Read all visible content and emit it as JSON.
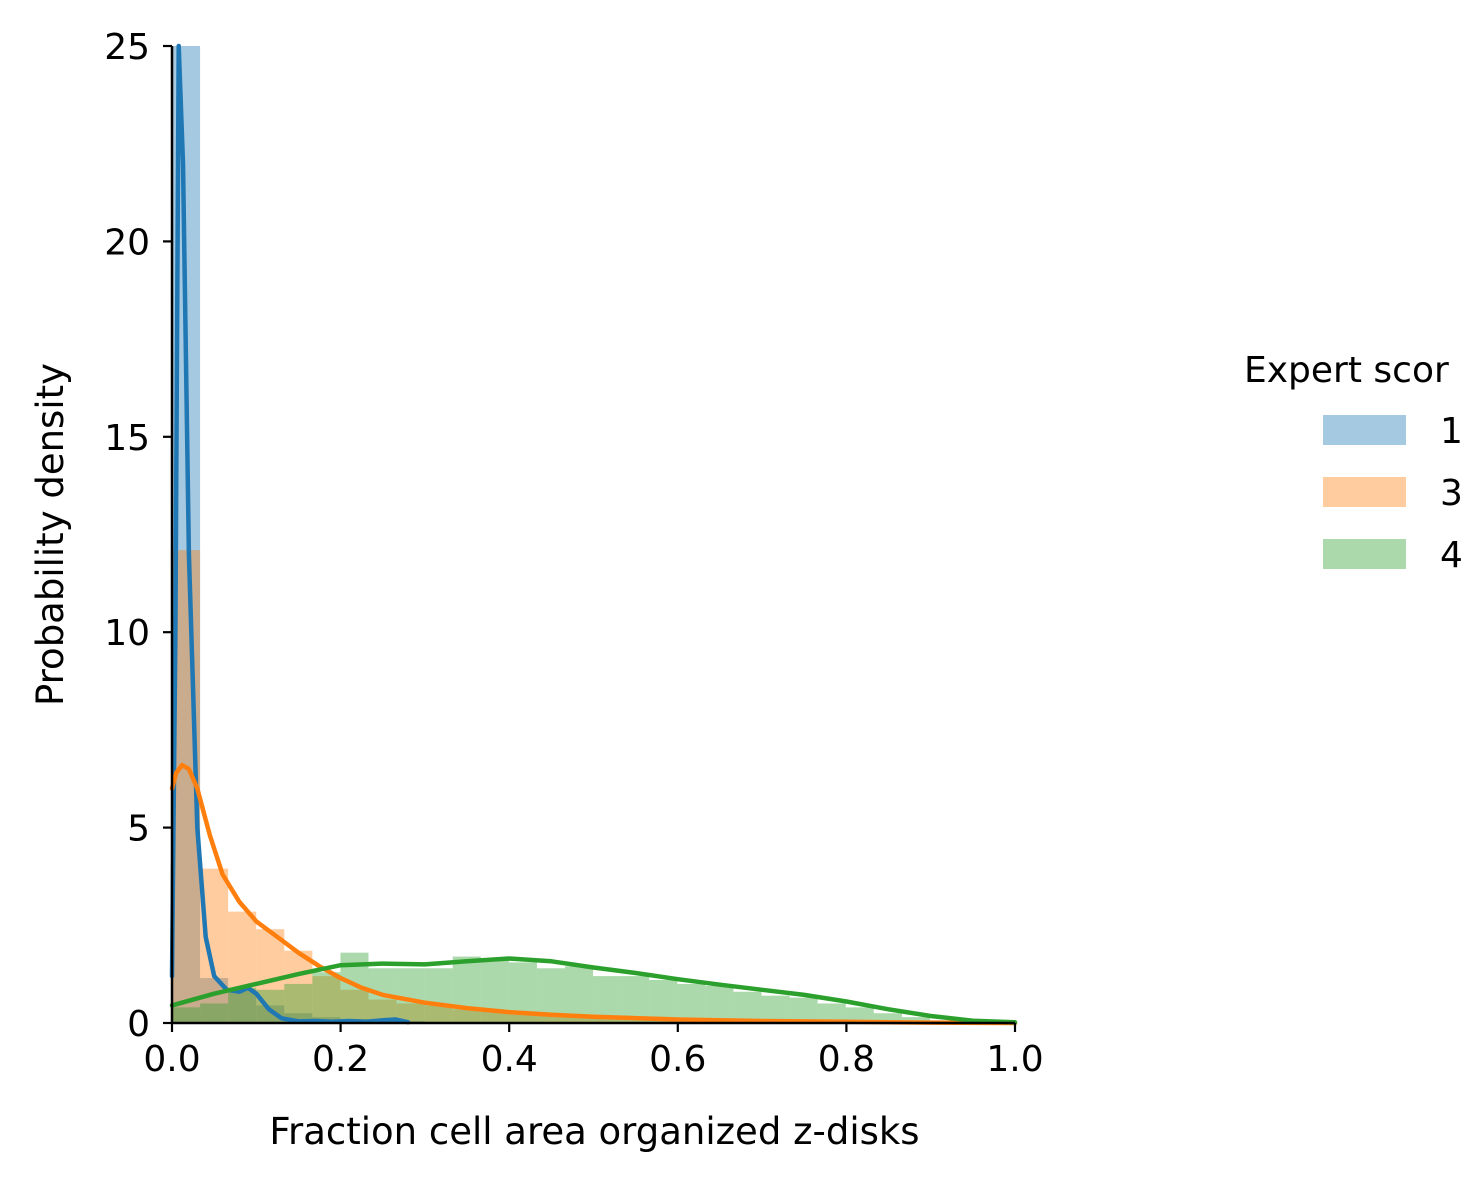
{
  "chart_data": {
    "type": "histogram_with_kde",
    "xlabel": "Fraction cell area organized z-disks",
    "ylabel": "Probability density",
    "xlim": [
      0.0,
      1.0
    ],
    "ylim": [
      0,
      25
    ],
    "x_ticks": [
      0.0,
      0.2,
      0.4,
      0.6,
      0.8,
      1.0
    ],
    "x_tick_labels": [
      "0.0",
      "0.2",
      "0.4",
      "0.6",
      "0.8",
      "1.0"
    ],
    "y_ticks": [
      0,
      5,
      10,
      15,
      20,
      25
    ],
    "y_tick_labels": [
      "0",
      "5",
      "10",
      "15",
      "20",
      "25"
    ],
    "grid": false,
    "legend": {
      "title": "Expert scor",
      "placement": "right, outside plot (cropped at image edge)"
    },
    "bin_width": 0.0333,
    "bins_start": 0.0,
    "series": [
      {
        "name": "1",
        "legend_label": "1",
        "color": "#1f77b4",
        "hist_alpha": 0.4,
        "hist_values": [
          25.0,
          1.15,
          0.85,
          0.45,
          0.25,
          0.15,
          0.1,
          0.05,
          0.05
        ],
        "kde": [
          [
            0.0,
            1.2
          ],
          [
            0.004,
            10.0
          ],
          [
            0.008,
            25.0
          ],
          [
            0.013,
            22.0
          ],
          [
            0.02,
            12.0
          ],
          [
            0.03,
            5.0
          ],
          [
            0.04,
            2.2
          ],
          [
            0.05,
            1.2
          ],
          [
            0.065,
            0.85
          ],
          [
            0.08,
            0.8
          ],
          [
            0.09,
            0.9
          ],
          [
            0.1,
            0.75
          ],
          [
            0.115,
            0.35
          ],
          [
            0.13,
            0.12
          ],
          [
            0.15,
            0.04
          ],
          [
            0.17,
            0.05
          ],
          [
            0.19,
            0.03
          ],
          [
            0.21,
            0.05
          ],
          [
            0.23,
            0.03
          ],
          [
            0.25,
            0.07
          ],
          [
            0.265,
            0.09
          ],
          [
            0.28,
            0.02
          ]
        ]
      },
      {
        "name": "3",
        "legend_label": "3",
        "color": "#ff7f0e",
        "hist_alpha": 0.4,
        "hist_values": [
          12.1,
          3.95,
          2.85,
          2.4,
          1.85,
          1.2,
          0.85,
          0.6,
          0.5,
          0.45,
          0.35,
          0.3,
          0.25,
          0.2,
          0.15,
          0.15,
          0.12,
          0.1,
          0.1,
          0.08,
          0.08,
          0.06,
          0.05,
          0.05,
          0.04,
          0.04,
          0.03,
          0.02
        ],
        "kde": [
          [
            0.0,
            6.0
          ],
          [
            0.005,
            6.4
          ],
          [
            0.012,
            6.6
          ],
          [
            0.02,
            6.5
          ],
          [
            0.03,
            6.0
          ],
          [
            0.045,
            4.8
          ],
          [
            0.06,
            3.8
          ],
          [
            0.08,
            3.1
          ],
          [
            0.1,
            2.6
          ],
          [
            0.125,
            2.2
          ],
          [
            0.15,
            1.8
          ],
          [
            0.175,
            1.45
          ],
          [
            0.2,
            1.15
          ],
          [
            0.225,
            0.9
          ],
          [
            0.25,
            0.72
          ],
          [
            0.3,
            0.52
          ],
          [
            0.35,
            0.38
          ],
          [
            0.4,
            0.28
          ],
          [
            0.45,
            0.21
          ],
          [
            0.5,
            0.16
          ],
          [
            0.6,
            0.09
          ],
          [
            0.7,
            0.05
          ],
          [
            0.8,
            0.03
          ],
          [
            0.9,
            0.01
          ],
          [
            1.0,
            0.0
          ]
        ]
      },
      {
        "name": "4",
        "legend_label": "4",
        "color": "#2ca02c",
        "hist_alpha": 0.4,
        "hist_values": [
          0.4,
          0.5,
          0.9,
          0.85,
          1.0,
          1.3,
          1.8,
          1.4,
          1.4,
          1.4,
          1.7,
          1.6,
          1.55,
          1.4,
          1.45,
          1.2,
          1.2,
          1.1,
          1.0,
          0.95,
          0.8,
          0.7,
          0.65,
          0.5,
          0.4,
          0.25,
          0.15,
          0.05,
          0.02,
          0.01
        ],
        "kde": [
          [
            0.0,
            0.45
          ],
          [
            0.05,
            0.75
          ],
          [
            0.1,
            1.0
          ],
          [
            0.15,
            1.25
          ],
          [
            0.2,
            1.48
          ],
          [
            0.25,
            1.52
          ],
          [
            0.3,
            1.5
          ],
          [
            0.35,
            1.58
          ],
          [
            0.4,
            1.65
          ],
          [
            0.45,
            1.58
          ],
          [
            0.5,
            1.42
          ],
          [
            0.55,
            1.28
          ],
          [
            0.6,
            1.12
          ],
          [
            0.65,
            0.98
          ],
          [
            0.7,
            0.85
          ],
          [
            0.75,
            0.72
          ],
          [
            0.8,
            0.55
          ],
          [
            0.85,
            0.35
          ],
          [
            0.9,
            0.18
          ],
          [
            0.95,
            0.06
          ],
          [
            1.0,
            0.02
          ]
        ]
      }
    ]
  }
}
